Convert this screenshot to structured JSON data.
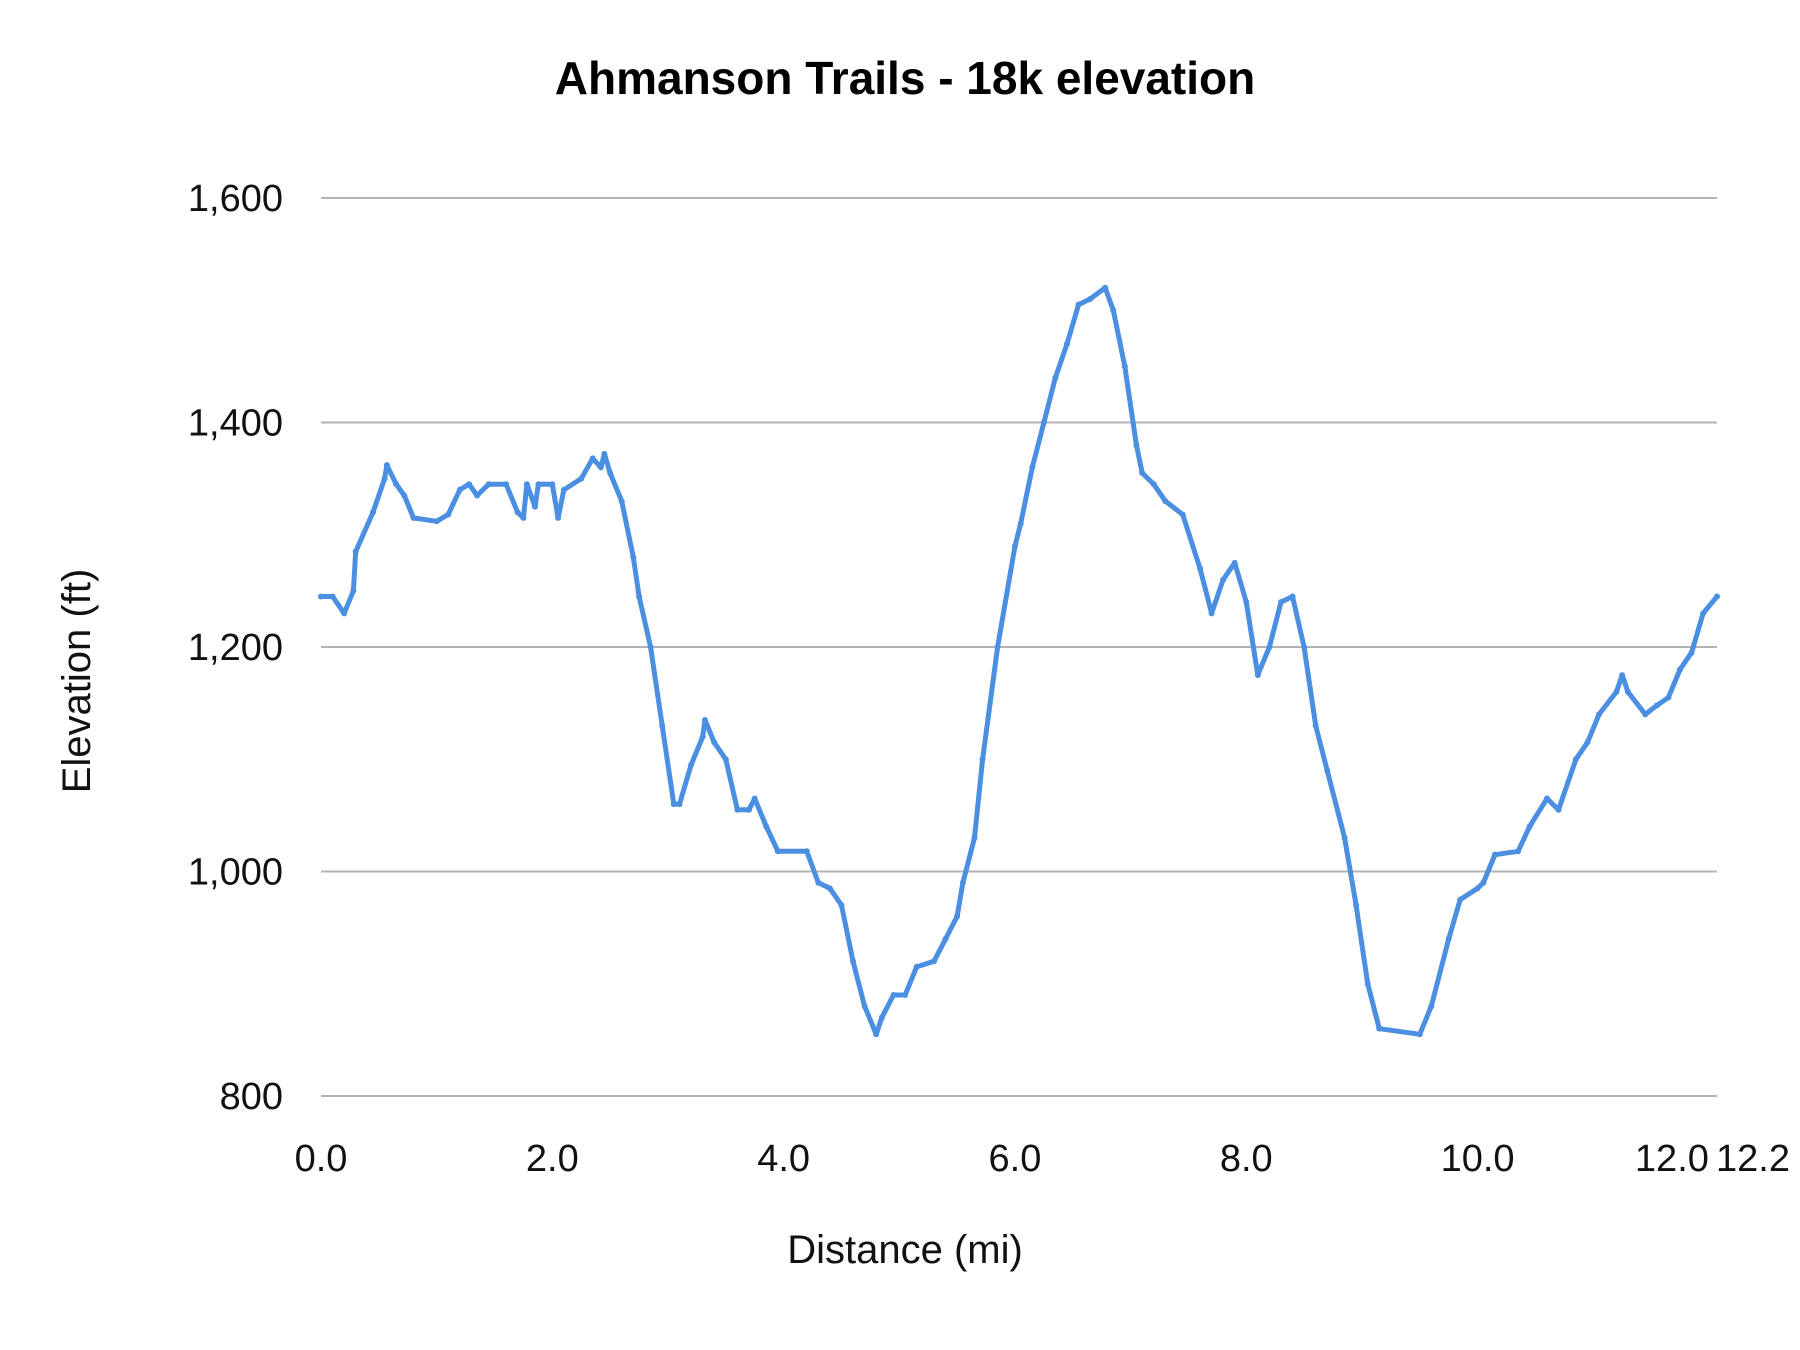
{
  "chart_data": {
    "type": "line",
    "title": "Ahmanson Trails - 18k elevation",
    "xlabel": "Distance (mi)",
    "ylabel": "Elevation (ft)",
    "xlim": [
      0,
      12.07
    ],
    "ylim": [
      800,
      1600
    ],
    "x_ticks": [
      {
        "value": 0,
        "label": "0.0"
      },
      {
        "value": 2,
        "label": "2.0"
      },
      {
        "value": 4,
        "label": "4.0"
      },
      {
        "value": 6,
        "label": "6.0"
      },
      {
        "value": 8,
        "label": "8.0"
      },
      {
        "value": 10,
        "label": "10.0"
      },
      {
        "value": 12,
        "label": "12.0"
      },
      {
        "value": 12.2,
        "label": "12.2"
      }
    ],
    "y_ticks": [
      {
        "value": 800,
        "label": "800"
      },
      {
        "value": 1000,
        "label": "1,000"
      },
      {
        "value": 1200,
        "label": "1,200"
      },
      {
        "value": 1400,
        "label": "1,400"
      },
      {
        "value": 1600,
        "label": "1,600"
      }
    ],
    "grid": true,
    "legend": "none",
    "line_color": "#4a8fe2",
    "series": [
      {
        "x": [
          0,
          0.1,
          0.2,
          0.28,
          0.3,
          0.45,
          0.55,
          0.57,
          0.65,
          0.72,
          0.8,
          1.0,
          1.1,
          1.2,
          1.28,
          1.35,
          1.45,
          1.6,
          1.7,
          1.75,
          1.78,
          1.85,
          1.88,
          2.0,
          2.05,
          2.1,
          2.25,
          2.35,
          2.42,
          2.45,
          2.5,
          2.6,
          2.7,
          2.75,
          2.85,
          2.95,
          3.05,
          3.1,
          3.2,
          3.3,
          3.32,
          3.4,
          3.5,
          3.6,
          3.7,
          3.75,
          3.85,
          3.95,
          4.2,
          4.3,
          4.4,
          4.5,
          4.6,
          4.7,
          4.8,
          4.85,
          4.95,
          5.05,
          5.15,
          5.3,
          5.4,
          5.5,
          5.55,
          5.65,
          5.72,
          5.85,
          6.0,
          6.05,
          6.15,
          6.25,
          6.35,
          6.45,
          6.55,
          6.65,
          6.78,
          6.85,
          6.95,
          7.05,
          7.1,
          7.2,
          7.3,
          7.45,
          7.6,
          7.7,
          7.8,
          7.9,
          8.0,
          8.1,
          8.2,
          8.3,
          8.4,
          8.5,
          8.6,
          8.7,
          8.85,
          8.95,
          9.05,
          9.15,
          9.5,
          9.6,
          9.75,
          9.85,
          10.0,
          10.05,
          10.15,
          10.35,
          10.45,
          10.6,
          10.7,
          10.85,
          10.95,
          11.05,
          11.2,
          11.25,
          11.3,
          11.45,
          11.55,
          11.65,
          11.75,
          11.85,
          11.95,
          12.07
        ],
        "y": [
          1245,
          1245,
          1230,
          1250,
          1285,
          1320,
          1350,
          1362,
          1345,
          1335,
          1315,
          1312,
          1318,
          1340,
          1345,
          1335,
          1345,
          1345,
          1320,
          1315,
          1345,
          1325,
          1345,
          1345,
          1315,
          1340,
          1350,
          1368,
          1360,
          1372,
          1355,
          1330,
          1280,
          1245,
          1200,
          1130,
          1060,
          1060,
          1095,
          1120,
          1135,
          1115,
          1100,
          1055,
          1055,
          1065,
          1040,
          1018,
          1018,
          990,
          985,
          970,
          920,
          880,
          855,
          870,
          890,
          890,
          915,
          920,
          940,
          960,
          990,
          1030,
          1100,
          1200,
          1290,
          1310,
          1360,
          1400,
          1440,
          1470,
          1505,
          1510,
          1520,
          1500,
          1450,
          1380,
          1355,
          1345,
          1330,
          1318,
          1270,
          1230,
          1260,
          1275,
          1240,
          1175,
          1200,
          1240,
          1245,
          1200,
          1130,
          1090,
          1030,
          970,
          900,
          860,
          855,
          880,
          940,
          975,
          985,
          990,
          1015,
          1018,
          1040,
          1065,
          1055,
          1100,
          1115,
          1140,
          1160,
          1175,
          1160,
          1140,
          1148,
          1155,
          1180,
          1195,
          1230,
          1245
        ]
      }
    ]
  }
}
